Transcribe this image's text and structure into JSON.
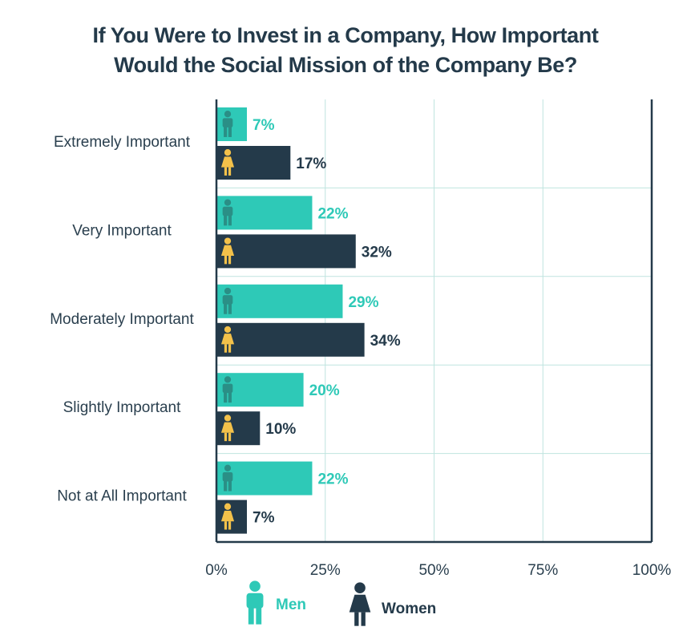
{
  "title_lines": [
    "If You Were to Invest in a Company, How Important",
    "Would the Social Mission of the Company Be?"
  ],
  "colors": {
    "men": "#2ec9b7",
    "women": "#243a4a",
    "men_label": "#2ec9b7",
    "women_label": "#243a4a",
    "grid": "#bfe4df",
    "axis": "#243a4a",
    "man_icon": "#2a8f86",
    "woman_icon": "#f3c14a"
  },
  "chart_data": {
    "type": "bar",
    "orientation": "horizontal",
    "categories": [
      "Extremely Important",
      "Very Important",
      "Moderately Important",
      "Slightly Important",
      "Not at All Important"
    ],
    "series": [
      {
        "name": "Men",
        "values": [
          7,
          22,
          29,
          20,
          22
        ],
        "labels": [
          "7%",
          "22%",
          "29%",
          "20%",
          "22%"
        ]
      },
      {
        "name": "Women",
        "values": [
          17,
          32,
          34,
          10,
          7
        ],
        "labels": [
          "17%",
          "32%",
          "34%",
          "10%",
          "7%"
        ]
      }
    ],
    "xlim": [
      0,
      100
    ],
    "xticks": [
      "0%",
      "25%",
      "50%",
      "75%",
      "100%"
    ],
    "grid": true,
    "legend_position": "bottom"
  }
}
